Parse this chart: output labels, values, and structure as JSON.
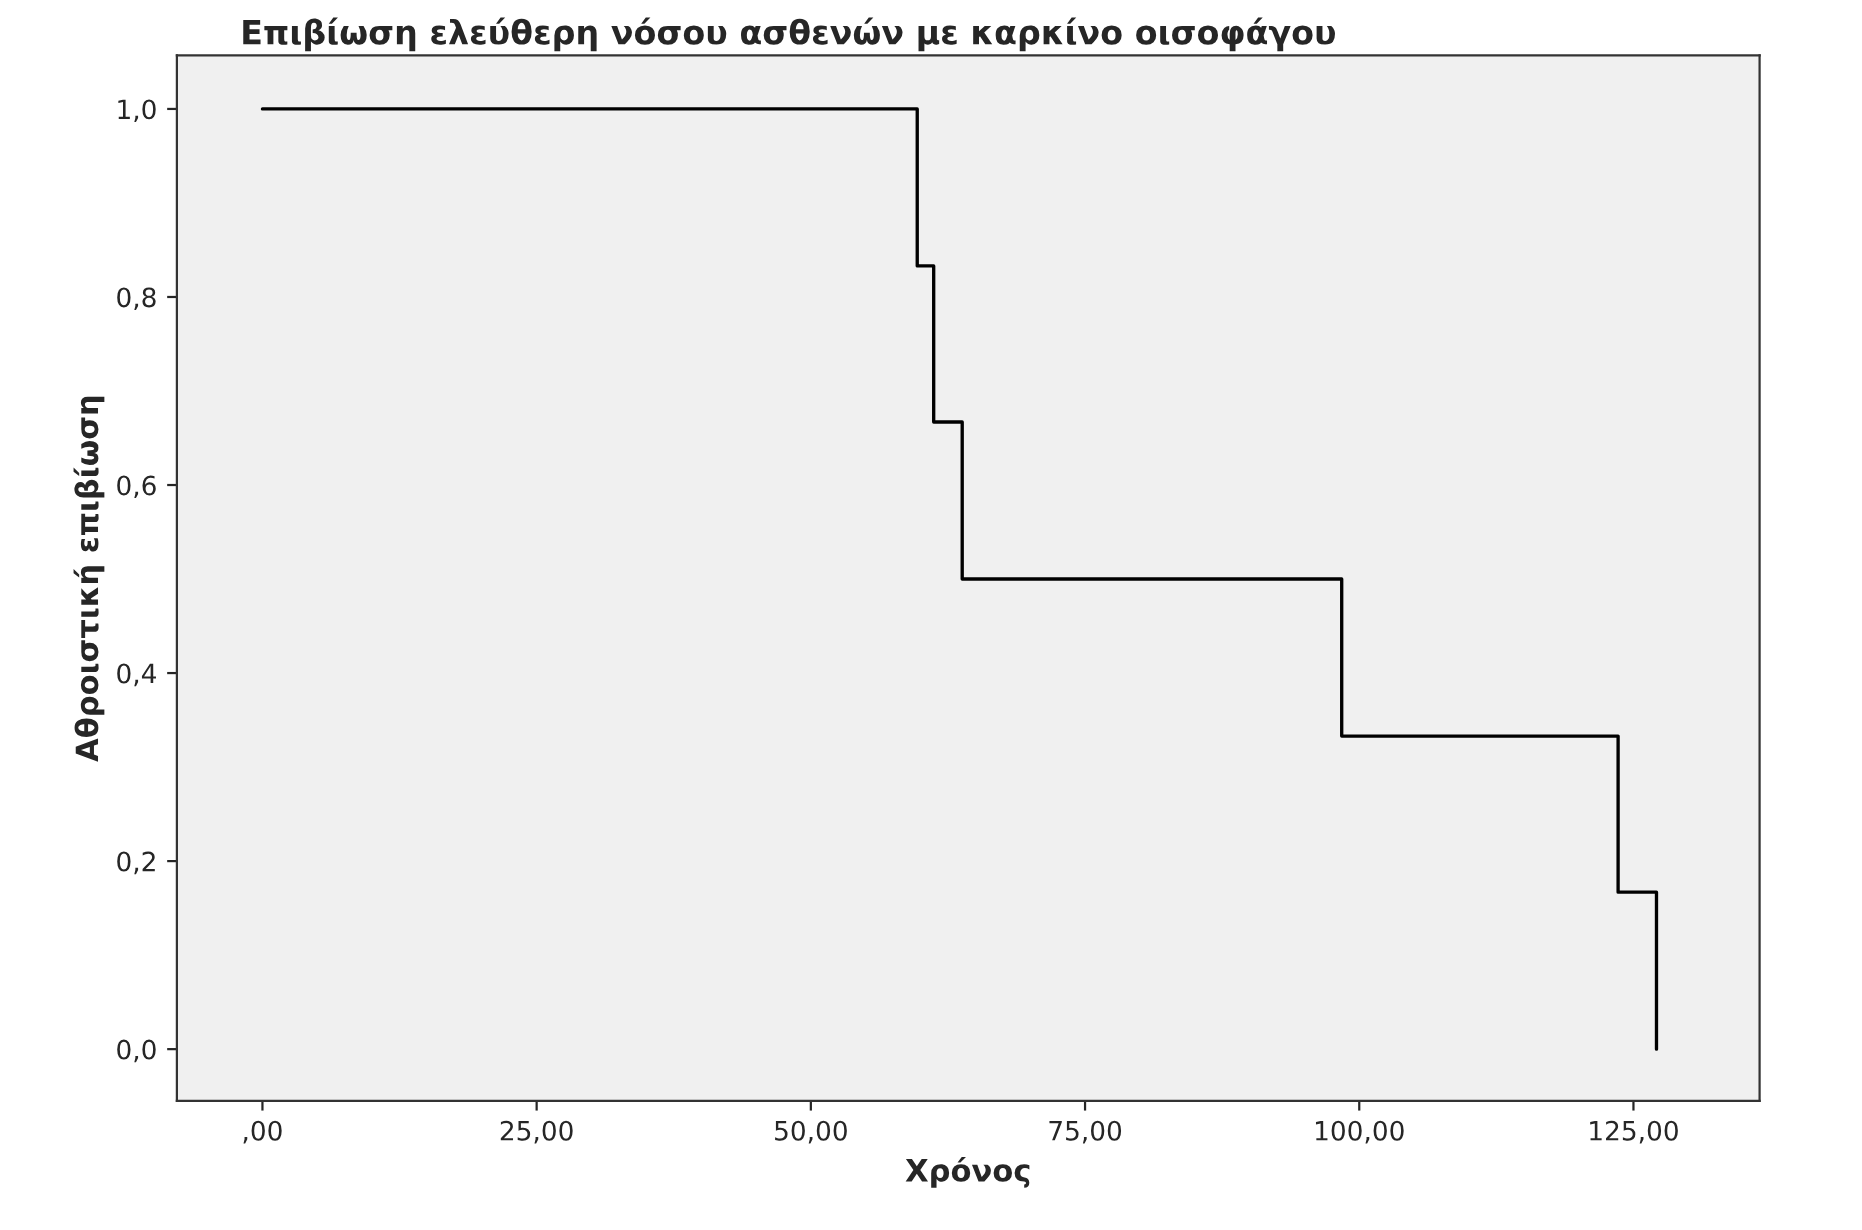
{
  "chart_data": {
    "type": "step",
    "title": "Επιβίωση ελεύθερη νόσου ασθενών με καρκίνο οισοφάγου",
    "xlabel": "Χρόνος",
    "ylabel": "Αθροιστική επιβίωση",
    "x": [
      0,
      59.7,
      61.2,
      63.8,
      98.4,
      123.6,
      127.1
    ],
    "series": [
      {
        "color": "#000000",
        "values": [
          1.0,
          0.833,
          0.667,
          0.5,
          0.333,
          0.167,
          0.0
        ]
      }
    ],
    "xlim": [
      -7.8,
      136.5
    ],
    "ylim": [
      -0.055,
      1.057
    ],
    "xticks": [
      {
        "value": 0,
        "label": ",00"
      },
      {
        "value": 25,
        "label": "25,00"
      },
      {
        "value": 50,
        "label": "50,00"
      },
      {
        "value": 75,
        "label": "75,00"
      },
      {
        "value": 100,
        "label": "100,00"
      },
      {
        "value": 125,
        "label": "125,00"
      }
    ],
    "yticks": [
      {
        "value": 0,
        "label": "0,0"
      },
      {
        "value": 0.2,
        "label": "0,2"
      },
      {
        "value": 0.4,
        "label": "0,4"
      },
      {
        "value": 0.6,
        "label": "0,6"
      },
      {
        "value": 0.8,
        "label": "0,8"
      },
      {
        "value": 1.0,
        "label": "1,0"
      }
    ],
    "grid": false,
    "legend": false
  }
}
